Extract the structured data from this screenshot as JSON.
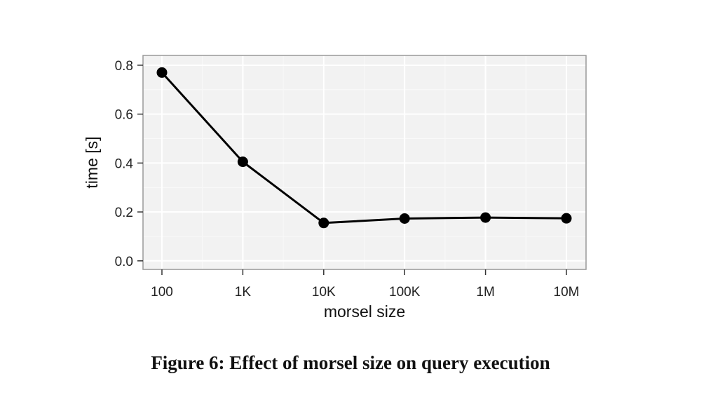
{
  "chart_data": {
    "type": "line",
    "categories": [
      "100",
      "1K",
      "10K",
      "100K",
      "1M",
      "10M"
    ],
    "series": [
      {
        "values": [
          0.77,
          0.405,
          0.155,
          0.173,
          0.177,
          0.174
        ]
      }
    ],
    "xlabel": "morsel size",
    "ylabel": "time [s]",
    "ylim": [
      -0.035,
      0.84
    ],
    "yticks": [
      "0.0",
      "0.2",
      "0.4",
      "0.6",
      "0.8"
    ],
    "ytick_values": [
      0.0,
      0.2,
      0.4,
      0.6,
      0.8
    ],
    "x_scale": "log",
    "grid": true,
    "colors": {
      "line": "#000000",
      "panel": "#f2f2f2",
      "grid_major": "#ffffff",
      "grid_minor": "#f9f9f9",
      "frame": "#999999"
    }
  },
  "caption": "Figure 6: Effect of morsel size on query execution"
}
